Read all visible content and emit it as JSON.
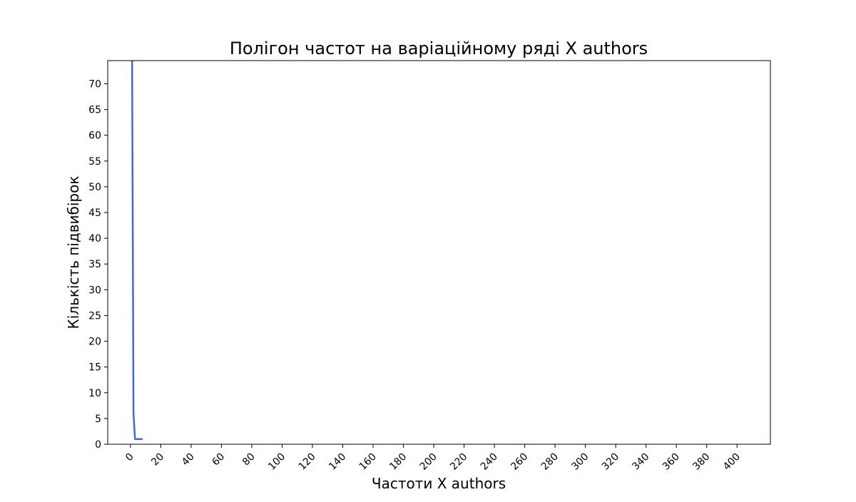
{
  "chart_data": {
    "type": "line",
    "title": "Полігон частот на варіаційному ряді X authors",
    "xlabel": "Частоти X authors",
    "ylabel": "Кількість підвибірок",
    "xlim": [
      -15,
      422
    ],
    "ylim": [
      0,
      74.5
    ],
    "x_ticks": [
      0,
      20,
      40,
      60,
      80,
      100,
      120,
      140,
      160,
      180,
      200,
      220,
      240,
      260,
      280,
      300,
      320,
      340,
      360,
      380,
      400
    ],
    "y_ticks": [
      0,
      5,
      10,
      15,
      20,
      25,
      30,
      35,
      40,
      45,
      50,
      55,
      60,
      65,
      70
    ],
    "x_tick_rotation": 45,
    "grid": false,
    "legend": "none",
    "series": [
      {
        "color": "#4466dd",
        "x": [
          1,
          2,
          3,
          4,
          5,
          6,
          7,
          8
        ],
        "y": [
          80,
          6,
          1,
          1,
          1,
          1,
          1,
          1
        ]
      }
    ]
  }
}
